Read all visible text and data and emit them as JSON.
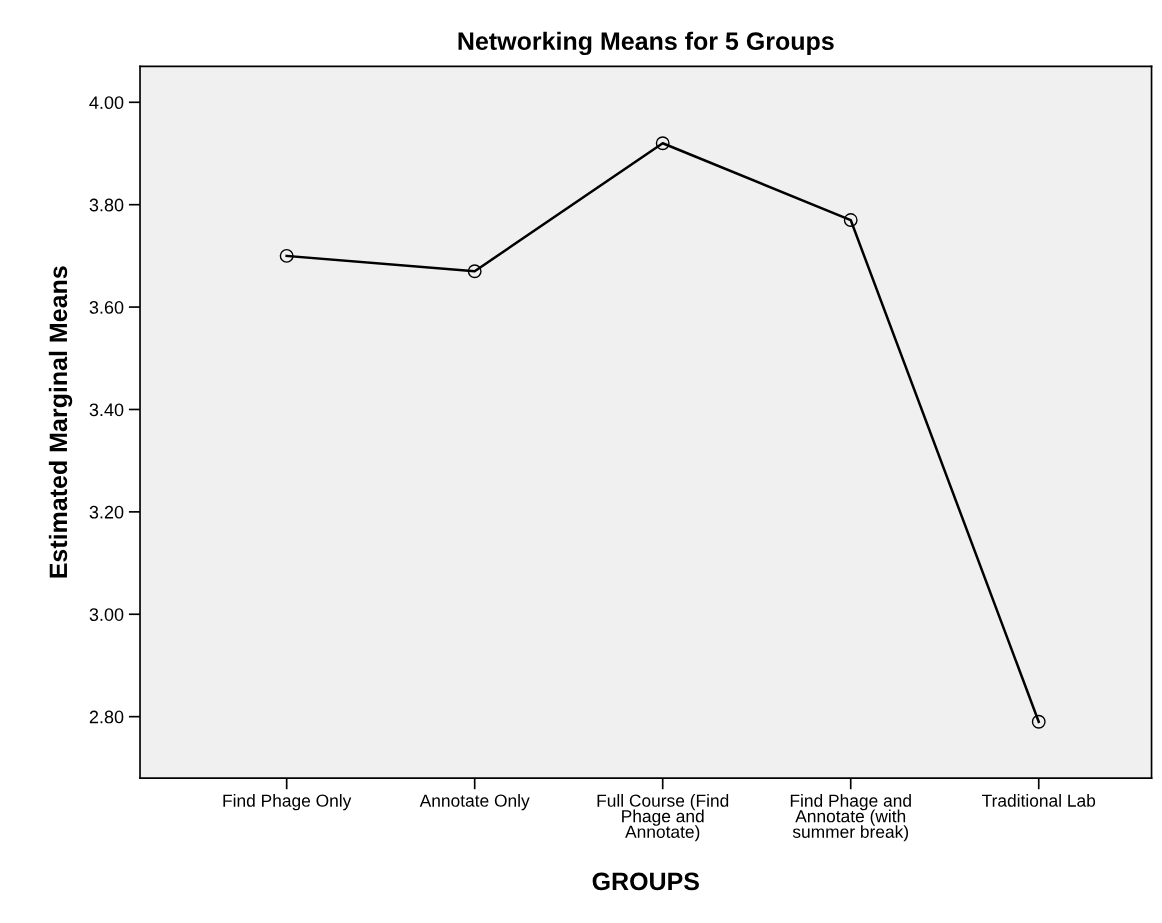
{
  "chart_data": {
    "type": "line",
    "title": "Networking Means for 5 Groups",
    "xlabel": "GROUPS",
    "ylabel": "Estimated Marginal Means",
    "categories": [
      "Find Phage Only",
      "Annotate Only",
      "Full Course (Find\nPhage and\nAnnotate)",
      "Find Phage and\nAnnotate (with\nsummer break)",
      "Traditional Lab"
    ],
    "series": [
      {
        "color": "#000000",
        "values": [
          3.7,
          3.67,
          3.92,
          3.77,
          2.79
        ]
      }
    ],
    "ylim": [
      2.68,
      4.07
    ],
    "yticks": [
      {
        "value": 2.8,
        "label": "2.80"
      },
      {
        "value": 3.0,
        "label": "3.00"
      },
      {
        "value": 3.2,
        "label": "3.20"
      },
      {
        "value": 3.4,
        "label": "3.40"
      },
      {
        "value": 3.6,
        "label": "3.60"
      },
      {
        "value": 3.8,
        "label": "3.80"
      },
      {
        "value": 4.0,
        "label": "4.00"
      }
    ],
    "marker": "circle",
    "line_style": "solid",
    "grid": false,
    "legend": false
  }
}
